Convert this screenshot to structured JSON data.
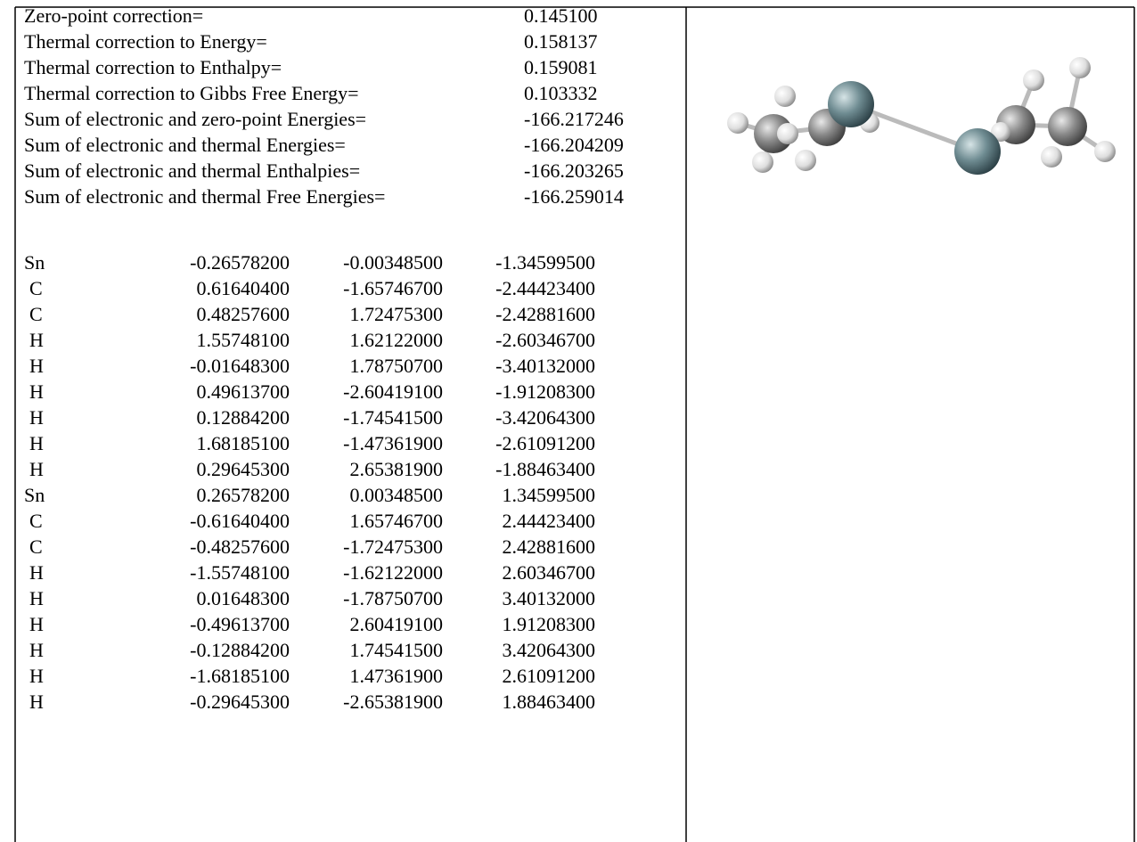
{
  "thermo": [
    {
      "label": "Zero-point correction=",
      "value": "0.145100"
    },
    {
      "label": "Thermal correction to Energy=",
      "value": "0.158137"
    },
    {
      "label": "Thermal correction to Enthalpy=",
      "value": "0.159081"
    },
    {
      "label": "Thermal correction to Gibbs Free Energy=",
      "value": "0.103332"
    },
    {
      "label": "Sum of electronic and zero-point Energies=",
      "value": "-166.217246"
    },
    {
      "label": "Sum of electronic and thermal Energies=",
      "value": "-166.204209"
    },
    {
      "label": "Sum of electronic and thermal Enthalpies=",
      "value": "-166.203265"
    },
    {
      "label": "Sum of electronic and thermal Free Energies=",
      "value": "-166.259014"
    }
  ],
  "atoms": [
    [
      "Sn",
      "-0.26578200",
      "-0.00348500",
      "-1.34599500"
    ],
    [
      "C",
      "0.61640400",
      "-1.65746700",
      "-2.44423400"
    ],
    [
      "C",
      "0.48257600",
      "1.72475300",
      "-2.42881600"
    ],
    [
      "H",
      "1.55748100",
      "1.62122000",
      "-2.60346700"
    ],
    [
      "H",
      "-0.01648300",
      "1.78750700",
      "-3.40132000"
    ],
    [
      "H",
      "0.49613700",
      "-2.60419100",
      "-1.91208300"
    ],
    [
      "H",
      "0.12884200",
      "-1.74541500",
      "-3.42064300"
    ],
    [
      "H",
      "1.68185100",
      "-1.47361900",
      "-2.61091200"
    ],
    [
      "H",
      "0.29645300",
      "2.65381900",
      "-1.88463400"
    ],
    [
      "Sn",
      "0.26578200",
      "0.00348500",
      "1.34599500"
    ],
    [
      "C",
      "-0.61640400",
      "1.65746700",
      "2.44423400"
    ],
    [
      "C",
      "-0.48257600",
      "-1.72475300",
      "2.42881600"
    ],
    [
      "H",
      "-1.55748100",
      "-1.62122000",
      "2.60346700"
    ],
    [
      "H",
      "0.01648300",
      "-1.78750700",
      "3.40132000"
    ],
    [
      "H",
      "-0.49613700",
      "2.60419100",
      "1.91208300"
    ],
    [
      "H",
      "-0.12884200",
      "1.74541500",
      "3.42064300"
    ],
    [
      "H",
      "-1.68185100",
      "1.47361900",
      "2.61091200"
    ],
    [
      "H",
      "-0.29645300",
      "-2.65381900",
      "1.88463400"
    ]
  ]
}
